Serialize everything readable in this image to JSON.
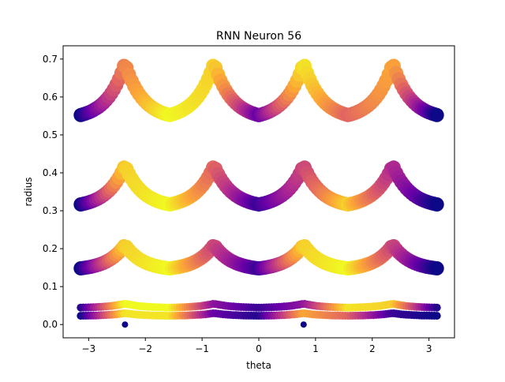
{
  "chart_data": {
    "type": "scatter",
    "title": "RNN Neuron 56",
    "xlabel": "theta",
    "ylabel": "radius",
    "xlim": [
      -3.45,
      3.45
    ],
    "ylim": [
      -0.035,
      0.735
    ],
    "xticks": [
      -3,
      -2,
      -1,
      0,
      1,
      2,
      3
    ],
    "xtick_labels": [
      "−3",
      "−2",
      "−1",
      "0",
      "1",
      "2",
      "3"
    ],
    "yticks": [
      0.0,
      0.1,
      0.2,
      0.3,
      0.4,
      0.5,
      0.6,
      0.7
    ],
    "ytick_labels": [
      "0.0",
      "0.1",
      "0.2",
      "0.3",
      "0.4",
      "0.5",
      "0.6",
      "0.7"
    ],
    "colormap": "plasma",
    "colormap_stops": [
      "#0d0887",
      "#6a00a8",
      "#b12a90",
      "#e16462",
      "#fca636",
      "#f0f921"
    ],
    "grid": false,
    "legend": "none",
    "series": [
      {
        "center_x": [
          -3.14,
          -2.36,
          -1.57,
          -0.79,
          0.0,
          0.79,
          1.57,
          2.36,
          3.14
        ],
        "center_y": [
          0.0,
          0.0,
          0.0,
          0.0,
          0.0,
          0.0,
          0.0,
          0.0,
          0.0
        ],
        "activation": [
          0.05,
          0.05,
          0.05,
          0.05,
          0.05,
          0.05,
          0.05,
          0.05,
          0.05
        ]
      },
      {
        "x": [
          -3.14,
          -2.36,
          -1.57,
          -0.79,
          0.0,
          0.79,
          1.57,
          2.36,
          3.14
        ],
        "y": [
          0.02,
          0.03,
          0.02,
          0.03,
          0.02,
          0.03,
          0.02,
          0.03,
          0.02
        ],
        "activation": [
          0.0,
          0.95,
          0.95,
          0.2,
          0.05,
          0.8,
          0.6,
          0.1,
          0.0
        ]
      },
      {
        "x": [
          -3.14,
          -2.36,
          -1.57,
          -0.79,
          0.0,
          0.79,
          1.57,
          2.36,
          3.14
        ],
        "y": [
          0.04,
          0.055,
          0.04,
          0.055,
          0.04,
          0.055,
          0.04,
          0.055,
          0.04
        ],
        "activation": [
          0.05,
          1.0,
          1.0,
          0.3,
          0.1,
          0.3,
          0.95,
          0.9,
          0.05
        ]
      },
      {
        "x": [
          -3.14,
          -2.36,
          -1.57,
          -0.79,
          0.0,
          0.79,
          1.57,
          2.36,
          3.14
        ],
        "y": [
          0.12,
          0.21,
          0.12,
          0.21,
          0.12,
          0.21,
          0.12,
          0.21,
          0.12
        ],
        "activation": [
          0.0,
          0.9,
          1.0,
          0.5,
          0.1,
          0.9,
          1.0,
          0.5,
          0.0
        ]
      },
      {
        "x": [
          -3.14,
          -2.36,
          -1.57,
          -0.79,
          0.0,
          0.79,
          1.57,
          2.36,
          3.14
        ],
        "y": [
          0.27,
          0.42,
          0.27,
          0.42,
          0.27,
          0.42,
          0.27,
          0.42,
          0.27
        ],
        "activation": [
          0.0,
          0.9,
          1.0,
          0.6,
          0.1,
          0.5,
          0.9,
          0.4,
          0.0
        ]
      },
      {
        "x": [
          -3.14,
          -2.36,
          -1.57,
          -0.79,
          0.0,
          0.79,
          1.57,
          2.36,
          3.14
        ],
        "y": [
          0.49,
          0.69,
          0.49,
          0.69,
          0.49,
          0.69,
          0.49,
          0.69,
          0.49
        ],
        "activation": [
          0.0,
          0.7,
          1.0,
          0.9,
          0.2,
          0.95,
          0.6,
          0.8,
          0.0
        ]
      }
    ],
    "isolated_points": [
      {
        "x": -2.36,
        "y": 0.0,
        "activation": 0.0
      },
      {
        "x": 0.79,
        "y": 0.0,
        "activation": 0.0
      }
    ]
  }
}
